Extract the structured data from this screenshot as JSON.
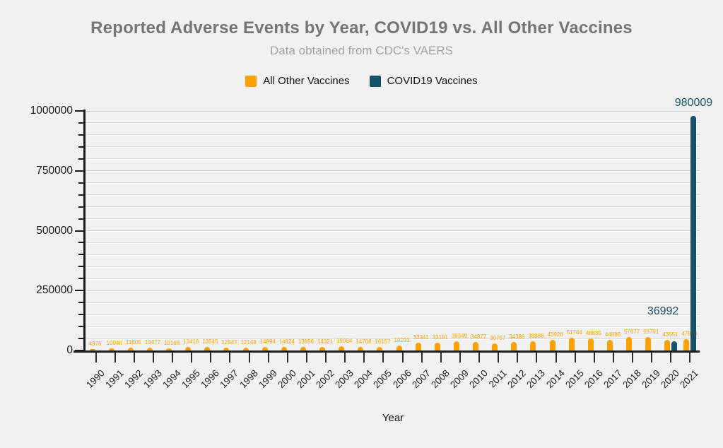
{
  "header": {
    "title": "Reported Adverse Events by Year, COVID19 vs. All Other Vaccines",
    "subtitle": "Data obtained from CDC's VAERS"
  },
  "legend": {
    "items": [
      {
        "label": "All Other Vaccines",
        "color": "#ffa100"
      },
      {
        "label": "COVID19 Vaccines",
        "color": "#175169"
      }
    ]
  },
  "colors": {
    "background": "#f1f1f2",
    "title": "#757575",
    "subtitle": "#a3a3a3",
    "other_vaccines": "#ffa100",
    "covid_vaccines": "#175169",
    "axis": "#1a1a1a",
    "gridline": "#d9d9d9"
  },
  "chart_data": {
    "type": "bar",
    "title": "Reported Adverse Events by Year, COVID19 vs. All Other Vaccines",
    "subtitle": "Data obtained from CDC's VAERS",
    "xlabel": "Year",
    "ylabel": "",
    "ylim": [
      0,
      1000000
    ],
    "y_major_ticks": [
      0,
      250000,
      500000,
      750000,
      1000000
    ],
    "y_minor_step": 50000,
    "grid": true,
    "legend_position": "top-center",
    "categories": [
      "1990",
      "1991",
      "1992",
      "1993",
      "1994",
      "1995",
      "1996",
      "1997",
      "1998",
      "1999",
      "2000",
      "2001",
      "2002",
      "2003",
      "2004",
      "2005",
      "2006",
      "2007",
      "2008",
      "2009",
      "2010",
      "2011",
      "2012",
      "2013",
      "2014",
      "2015",
      "2016",
      "2017",
      "2018",
      "2019",
      "2020",
      "2021"
    ],
    "series": [
      {
        "name": "All Other Vaccines",
        "color": "#ffa100",
        "values": [
          4976,
          10046,
          11605,
          10477,
          10168,
          13416,
          13545,
          12547,
          12148,
          14694,
          14824,
          13856,
          14321,
          19084,
          14708,
          16157,
          19291,
          33341,
          33181,
          39349,
          34877,
          30757,
          34386,
          38888,
          43928,
          51744,
          48835,
          44896,
          57077,
          55761,
          43551,
          47930
        ]
      },
      {
        "name": "COVID19 Vaccines",
        "color": "#175169",
        "values": [
          0,
          0,
          0,
          0,
          0,
          0,
          0,
          0,
          0,
          0,
          0,
          0,
          0,
          0,
          0,
          0,
          0,
          0,
          0,
          0,
          0,
          0,
          0,
          0,
          0,
          0,
          0,
          0,
          0,
          0,
          36992,
          980009
        ]
      }
    ]
  }
}
